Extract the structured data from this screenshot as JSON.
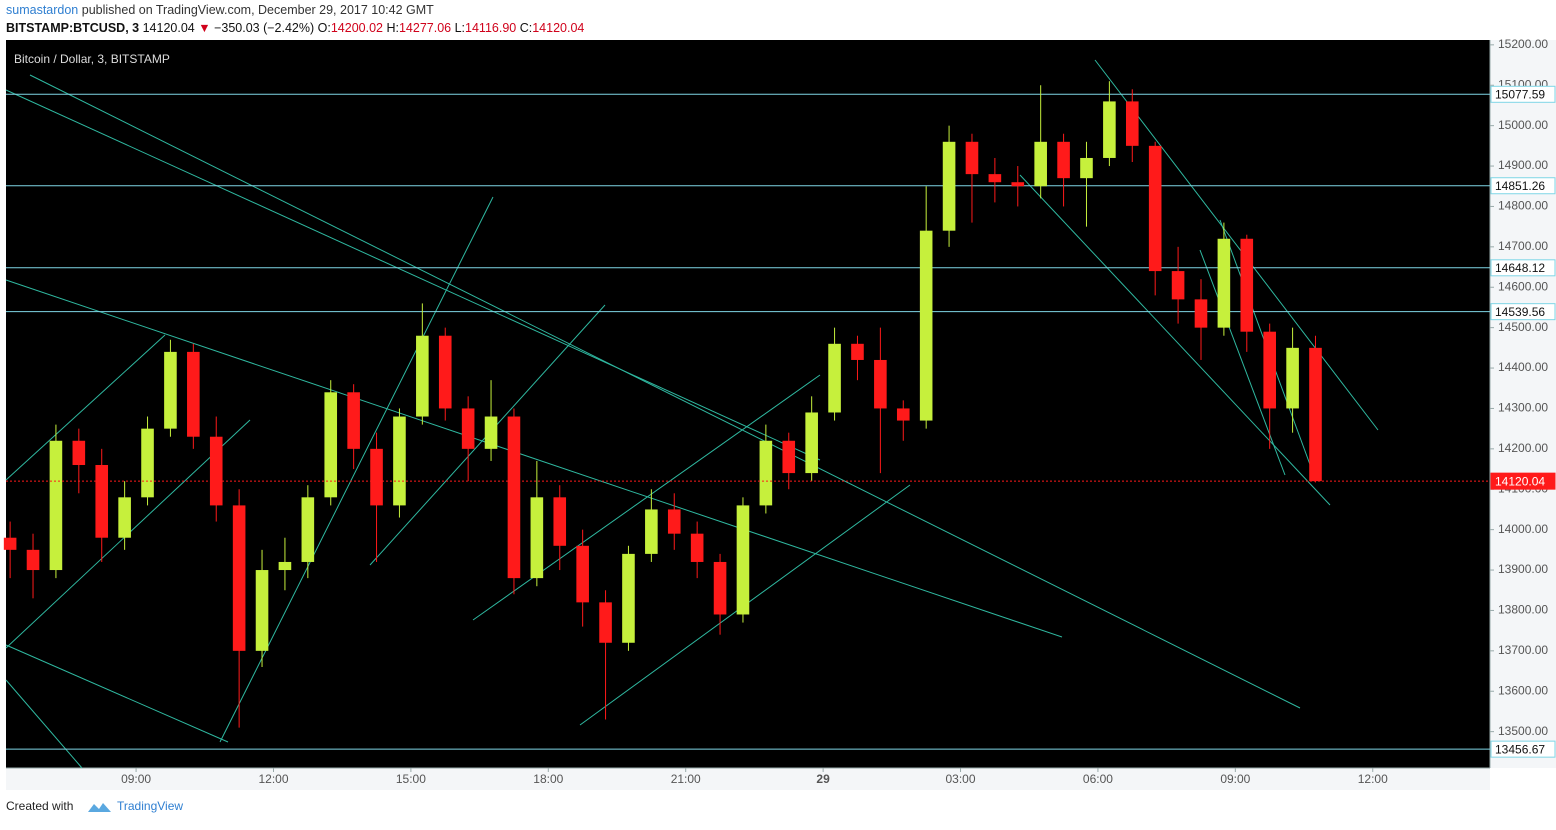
{
  "header": {
    "author": "sumastardon",
    "published": "published on TradingView.com, December 29, 2017 10:42 GMT",
    "symbol": "BITSTAMP:BTCUSD, 3",
    "last": "14120.04",
    "change": "−350.03 (−2.42%)",
    "o_label": "O:",
    "open": "14200.02",
    "h_label": "H:",
    "high": "14277.06",
    "l_label": "L:",
    "low": "14116.90",
    "c_label": "C:",
    "close": "14120.04"
  },
  "footer": {
    "created": "Created with",
    "brand": "TradingView"
  },
  "chart_data": {
    "type": "candlestick",
    "title": "Bitcoin / Dollar, 3, BITSTAMP",
    "up_color": "#c6f03c",
    "down_color": "#ff1a1a",
    "level_color": "#7fd6e6",
    "last_color": "#ff1a1a",
    "xlim": [
      6.16,
      38.56
    ],
    "ylim": [
      13410,
      15212
    ],
    "xticks": [
      {
        "value": 9,
        "label": "09:00"
      },
      {
        "value": 12,
        "label": "12:00"
      },
      {
        "value": 15,
        "label": "15:00"
      },
      {
        "value": 18,
        "label": "18:00"
      },
      {
        "value": 21,
        "label": "21:00"
      },
      {
        "value": 24,
        "label": "29"
      },
      {
        "value": 27,
        "label": "03:00"
      },
      {
        "value": 30,
        "label": "06:00"
      },
      {
        "value": 33,
        "label": "09:00"
      },
      {
        "value": 36,
        "label": "12:00"
      }
    ],
    "yticks": [
      {
        "value": 13500,
        "label": "13500.00"
      },
      {
        "value": 13600,
        "label": "13600.00"
      },
      {
        "value": 13700,
        "label": "13700.00"
      },
      {
        "value": 13800,
        "label": "13800.00"
      },
      {
        "value": 13900,
        "label": "13900.00"
      },
      {
        "value": 14000,
        "label": "14000.00"
      },
      {
        "value": 14100,
        "label": "14100.00"
      },
      {
        "value": 14200,
        "label": "14200.00"
      },
      {
        "value": 14300,
        "label": "14300.00"
      },
      {
        "value": 14400,
        "label": "14400.00"
      },
      {
        "value": 14500,
        "label": "14500.00"
      },
      {
        "value": 14600,
        "label": "14600.00"
      },
      {
        "value": 14700,
        "label": "14700.00"
      },
      {
        "value": 14800,
        "label": "14800.00"
      },
      {
        "value": 14900,
        "label": "14900.00"
      },
      {
        "value": 15000,
        "label": "15000.00"
      },
      {
        "value": 15100,
        "label": "15100.00"
      },
      {
        "value": 15200,
        "label": "15200.00"
      }
    ],
    "levels": [
      15077.59,
      14851.26,
      14648.12,
      14539.56,
      13456.67
    ],
    "last_price": 14120.04,
    "x": [
      6.25,
      6.75,
      7.25,
      7.75,
      8.25,
      8.75,
      9.25,
      9.75,
      10.25,
      10.75,
      11.25,
      11.75,
      12.25,
      12.75,
      13.25,
      13.75,
      14.25,
      14.75,
      15.25,
      15.75,
      16.25,
      16.75,
      17.25,
      17.75,
      18.25,
      18.75,
      19.25,
      19.75,
      20.25,
      20.75,
      21.25,
      21.75,
      22.25,
      22.75,
      23.25,
      23.75,
      24.25,
      24.75,
      25.25,
      25.75,
      26.25,
      26.75,
      27.25,
      27.75,
      28.25,
      28.75,
      29.25,
      29.75,
      30.25,
      30.75,
      31.25,
      31.75,
      32.25,
      32.75,
      33.25,
      33.75,
      34.25,
      34.75
    ],
    "open": [
      13980,
      13950,
      13900,
      14220,
      14160,
      13980,
      14080,
      14250,
      14440,
      14230,
      14060,
      13700,
      13900,
      13920,
      14080,
      14340,
      14200,
      14060,
      14280,
      14480,
      14300,
      14200,
      14280,
      13880,
      14080,
      13960,
      13820,
      13720,
      13940,
      14050,
      13990,
      13920,
      13790,
      14060,
      14220,
      14140,
      14290,
      14460,
      14420,
      14300,
      14270,
      14740,
      14960,
      14880,
      14860,
      14850,
      14960,
      14870,
      14920,
      15060,
      14950,
      14640,
      14570,
      14500,
      14720,
      14490,
      14300,
      14450
    ],
    "high": [
      14020,
      13990,
      14260,
      14250,
      14200,
      14120,
      14280,
      14470,
      14460,
      14280,
      14100,
      13950,
      13980,
      14110,
      14370,
      14360,
      14240,
      14300,
      14560,
      14500,
      14330,
      14370,
      14300,
      14170,
      14110,
      14000,
      13850,
      13960,
      14100,
      14090,
      14020,
      13940,
      14080,
      14260,
      14240,
      14330,
      14500,
      14480,
      14500,
      14320,
      14850,
      15000,
      14980,
      14920,
      14900,
      15100,
      14980,
      14960,
      15110,
      15090,
      14960,
      14700,
      14620,
      14760,
      14730,
      14510,
      14500,
      14480
    ],
    "low": [
      13880,
      13830,
      13880,
      14090,
      13920,
      13950,
      14060,
      14230,
      14200,
      14020,
      13510,
      13660,
      13850,
      13880,
      14060,
      14150,
      13920,
      14030,
      14260,
      14270,
      14120,
      14170,
      13840,
      13860,
      13900,
      13760,
      13530,
      13700,
      13920,
      13950,
      13880,
      13740,
      13770,
      14040,
      14100,
      14120,
      14270,
      14370,
      14140,
      14220,
      14250,
      14700,
      14760,
      14810,
      14800,
      14820,
      14800,
      14750,
      14900,
      14910,
      14580,
      14510,
      14420,
      14480,
      14440,
      14200,
      14240,
      14116.9
    ],
    "close": [
      13950,
      13900,
      14220,
      14160,
      13980,
      14080,
      14250,
      14440,
      14230,
      14060,
      13700,
      13900,
      13920,
      14080,
      14340,
      14200,
      14060,
      14280,
      14480,
      14300,
      14200,
      14280,
      13880,
      14080,
      13960,
      13820,
      13720,
      13940,
      14050,
      13990,
      13920,
      13790,
      14060,
      14220,
      14140,
      14290,
      14460,
      14420,
      14300,
      14270,
      14740,
      14960,
      14880,
      14860,
      14850,
      14960,
      14870,
      14920,
      15060,
      14950,
      14640,
      14570,
      14500,
      14720,
      14490,
      14300,
      14450,
      14120.04
    ]
  }
}
